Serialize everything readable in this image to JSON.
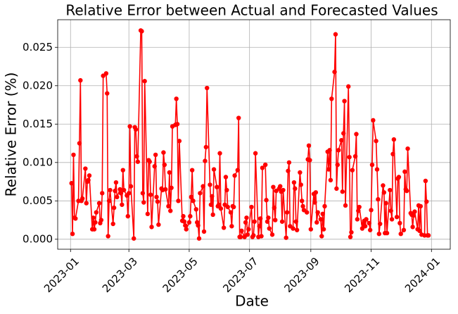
{
  "chart_data": {
    "type": "line",
    "title": "Relative Error between Actual and Forecasted Values",
    "xlabel": "Date",
    "ylabel": "Relative Error (%)",
    "color": "#ff0000",
    "grid": true,
    "xlim": [
      "2022-12-19",
      "2024-01-20"
    ],
    "xticks": [
      {
        "value": "2023-01-01",
        "label": "2023-01"
      },
      {
        "value": "2023-03-01",
        "label": "2023-03"
      },
      {
        "value": "2023-05-01",
        "label": "2023-05"
      },
      {
        "value": "2023-07-01",
        "label": "2023-07"
      },
      {
        "value": "2023-09-01",
        "label": "2023-09"
      },
      {
        "value": "2023-11-01",
        "label": "2023-11"
      },
      {
        "value": "2024-01-01",
        "label": "2024-01"
      }
    ],
    "ylim": [
      -0.0013,
      0.0286
    ],
    "yticks": [
      {
        "value": 0,
        "label": "0.000"
      },
      {
        "value": 0.005,
        "label": "0.005"
      },
      {
        "value": 0.01,
        "label": "0.010"
      },
      {
        "value": 0.015,
        "label": "0.015"
      },
      {
        "value": 0.02,
        "label": "0.020"
      },
      {
        "value": 0.025,
        "label": "0.025"
      }
    ],
    "x": [
      "2023-01-02",
      "2023-01-03",
      "2023-01-04",
      "2023-01-05",
      "2023-01-06",
      "2023-01-09",
      "2023-01-10",
      "2023-01-11",
      "2023-01-12",
      "2023-01-13",
      "2023-01-16",
      "2023-01-17",
      "2023-01-18",
      "2023-01-19",
      "2023-01-20",
      "2023-01-23",
      "2023-01-24",
      "2023-01-25",
      "2023-01-26",
      "2023-01-27",
      "2023-01-30",
      "2023-01-31",
      "2023-02-01",
      "2023-02-02",
      "2023-02-03",
      "2023-02-06",
      "2023-02-07",
      "2023-02-08",
      "2023-02-09",
      "2023-02-10",
      "2023-02-13",
      "2023-02-14",
      "2023-02-15",
      "2023-02-16",
      "2023-02-17",
      "2023-02-20",
      "2023-02-21",
      "2023-02-22",
      "2023-02-23",
      "2023-02-24",
      "2023-02-27",
      "2023-02-28",
      "2023-03-01",
      "2023-03-02",
      "2023-03-03",
      "2023-03-06",
      "2023-03-07",
      "2023-03-08",
      "2023-03-09",
      "2023-03-10",
      "2023-03-13",
      "2023-03-14",
      "2023-03-15",
      "2023-03-16",
      "2023-03-17",
      "2023-03-20",
      "2023-03-21",
      "2023-03-22",
      "2023-03-23",
      "2023-03-24",
      "2023-03-27",
      "2023-03-28",
      "2023-03-29",
      "2023-03-30",
      "2023-03-31",
      "2023-04-03",
      "2023-04-04",
      "2023-04-05",
      "2023-04-06",
      "2023-04-07",
      "2023-04-10",
      "2023-04-11",
      "2023-04-12",
      "2023-04-13",
      "2023-04-14",
      "2023-04-17",
      "2023-04-18",
      "2023-04-19",
      "2023-04-20",
      "2023-04-21",
      "2023-04-24",
      "2023-04-25",
      "2023-04-26",
      "2023-04-27",
      "2023-04-28",
      "2023-05-01",
      "2023-05-02",
      "2023-05-03",
      "2023-05-04",
      "2023-05-05",
      "2023-05-08",
      "2023-05-09",
      "2023-05-10",
      "2023-05-11",
      "2023-05-12",
      "2023-05-15",
      "2023-05-16",
      "2023-05-17",
      "2023-05-18",
      "2023-05-19",
      "2023-05-22",
      "2023-05-23",
      "2023-05-24",
      "2023-05-25",
      "2023-05-26",
      "2023-05-29",
      "2023-05-30",
      "2023-05-31",
      "2023-06-01",
      "2023-06-02",
      "2023-06-05",
      "2023-06-06",
      "2023-06-07",
      "2023-06-08",
      "2023-06-09",
      "2023-06-12",
      "2023-06-13",
      "2023-06-14",
      "2023-06-15",
      "2023-06-16",
      "2023-06-19",
      "2023-06-20",
      "2023-06-21",
      "2023-06-22",
      "2023-06-23",
      "2023-06-26",
      "2023-06-27",
      "2023-06-28",
      "2023-06-29",
      "2023-06-30",
      "2023-07-03",
      "2023-07-04",
      "2023-07-05",
      "2023-07-06",
      "2023-07-07",
      "2023-07-10",
      "2023-07-11",
      "2023-07-12",
      "2023-07-13",
      "2023-07-14",
      "2023-07-17",
      "2023-07-18",
      "2023-07-19",
      "2023-07-20",
      "2023-07-21",
      "2023-07-24",
      "2023-07-25",
      "2023-07-26",
      "2023-07-27",
      "2023-07-28",
      "2023-07-31",
      "2023-08-01",
      "2023-08-02",
      "2023-08-03",
      "2023-08-04",
      "2023-08-07",
      "2023-08-08",
      "2023-08-09",
      "2023-08-10",
      "2023-08-11",
      "2023-08-14",
      "2023-08-15",
      "2023-08-16",
      "2023-08-17",
      "2023-08-18",
      "2023-08-21",
      "2023-08-22",
      "2023-08-23",
      "2023-08-24",
      "2023-08-25",
      "2023-08-28",
      "2023-08-29",
      "2023-08-30",
      "2023-08-31",
      "2023-09-01",
      "2023-09-04",
      "2023-09-05",
      "2023-09-06",
      "2023-09-07",
      "2023-09-08",
      "2023-09-11",
      "2023-09-12",
      "2023-09-13",
      "2023-09-14",
      "2023-09-15",
      "2023-09-18",
      "2023-09-19",
      "2023-09-20",
      "2023-09-21",
      "2023-09-22",
      "2023-09-25",
      "2023-09-26",
      "2023-09-27",
      "2023-09-28",
      "2023-09-29",
      "2023-10-02",
      "2023-10-03",
      "2023-10-04",
      "2023-10-05",
      "2023-10-06",
      "2023-10-09",
      "2023-10-10",
      "2023-10-11",
      "2023-10-12",
      "2023-10-13",
      "2023-10-16",
      "2023-10-17",
      "2023-10-18",
      "2023-10-19",
      "2023-10-20",
      "2023-10-23",
      "2023-10-24",
      "2023-10-25",
      "2023-10-26",
      "2023-10-27",
      "2023-10-30",
      "2023-10-31",
      "2023-11-01",
      "2023-11-02",
      "2023-11-03",
      "2023-11-06",
      "2023-11-07",
      "2023-11-08",
      "2023-11-09",
      "2023-11-10",
      "2023-11-13",
      "2023-11-14",
      "2023-11-15",
      "2023-11-16",
      "2023-11-17",
      "2023-11-20",
      "2023-11-21",
      "2023-11-22",
      "2023-11-23",
      "2023-11-24",
      "2023-11-27",
      "2023-11-28",
      "2023-11-29",
      "2023-11-30",
      "2023-12-01",
      "2023-12-04",
      "2023-12-05",
      "2023-12-06",
      "2023-12-07",
      "2023-12-08",
      "2023-12-11",
      "2023-12-12",
      "2023-12-13",
      "2023-12-14",
      "2023-12-15",
      "2023-12-18",
      "2023-12-19",
      "2023-12-20",
      "2023-12-21",
      "2023-12-22",
      "2023-12-25",
      "2023-12-26",
      "2023-12-27",
      "2023-12-28",
      "2023-12-29"
    ],
    "values": [
      0.0073,
      0.0007,
      0.011,
      0.0028,
      0.0027,
      0.005,
      0.0125,
      0.0207,
      0.005,
      0.0053,
      0.0092,
      0.0047,
      0.0075,
      0.0077,
      0.0083,
      0.0013,
      0.0028,
      0.0013,
      0.0022,
      0.0035,
      0.0047,
      0.0021,
      0.0025,
      0.006,
      0.0213,
      0.0216,
      0.019,
      0.0004,
      0.005,
      0.0064,
      0.002,
      0.0041,
      0.0063,
      0.0074,
      0.0055,
      0.0065,
      0.006,
      0.0045,
      0.009,
      0.0064,
      0.0057,
      0.003,
      0.006,
      0.0147,
      0.0069,
      0.0001,
      0.0146,
      0.0143,
      0.0108,
      0.0101,
      0.0272,
      0.0271,
      0.006,
      0.0048,
      0.0206,
      0.0033,
      0.0103,
      0.0101,
      0.0058,
      0.0016,
      0.0095,
      0.011,
      0.0055,
      0.0049,
      0.0019,
      0.0066,
      0.0064,
      0.0113,
      0.0097,
      0.0065,
      0.0043,
      0.0087,
      0.0037,
      0.0067,
      0.0147,
      0.0149,
      0.0183,
      0.015,
      0.005,
      0.0128,
      0.0024,
      0.003,
      0.0023,
      0.0018,
      0.0013,
      0.0022,
      0.003,
      0.0055,
      0.009,
      0.005,
      0.0039,
      0.0022,
      0.0018,
      0.0001,
      0.006,
      0.0069,
      0.001,
      0.0102,
      0.012,
      0.0197,
      0.0071,
      0.0045,
      0.0056,
      0.0032,
      0.0091,
      0.0068,
      0.0043,
      0.0045,
      0.0112,
      0.004,
      0.0015,
      0.0045,
      0.0081,
      0.0064,
      0.0042,
      0.0035,
      0.0017,
      0.0043,
      0.0042,
      0.0083,
      0.009,
      0.0158,
      0.0003,
      0.0003,
      0.0011,
      0.0003,
      0.0022,
      0.0028,
      0.0006,
      0.0013,
      0.0042,
      0.0003,
      0.0005,
      0.0023,
      0.0112,
      0.0003,
      0.0017,
      0.0027,
      0.0004,
      0.0093,
      0.0097,
      0.0051,
      0.0023,
      0.0028,
      0.0014,
      0.0006,
      0.0068,
      0.0041,
      0.0025,
      0.0063,
      0.0066,
      0.0069,
      0.0062,
      0.0023,
      0.0064,
      0.0002,
      0.0035,
      0.0089,
      0.01,
      0.0017,
      0.0014,
      0.0074,
      0.0066,
      0.0023,
      0.0012,
      0.0087,
      0.0071,
      0.005,
      0.0043,
      0.0038,
      0.0035,
      0.0104,
      0.0122,
      0.0103,
      0.0013,
      0.0059,
      0.0048,
      0.0061,
      0.0022,
      0.0035,
      0.0026,
      0.0004,
      0.0033,
      0.0013,
      0.0043,
      0.0114,
      0.0091,
      0.0116,
      0.0077,
      0.0183,
      0.0218,
      0.0267,
      0.0066,
      0.0097,
      0.0116,
      0.0129,
      0.0062,
      0.0138,
      0.018,
      0.0044,
      0.0199,
      0.0107,
      0.0003,
      0.0009,
      0.009,
      0.0108,
      0.0137,
      0.0026,
      0.0037,
      0.0042,
      0.0014,
      0.002,
      0.0024,
      0.0017,
      0.0026,
      0.0021,
      0.0012,
      0.0038,
      0.0097,
      0.0155,
      0.0128,
      0.0091,
      0.0052,
      0.0007,
      0.002,
      0.007,
      0.0061,
      0.0008,
      0.0047,
      0.0008,
      0.0064,
      0.0037,
      0.0026,
      0.0111,
      0.013,
      0.0029,
      0.0079,
      0.0081,
      0.0021,
      0.0007,
      0.0012,
      0.0088,
      0.0065,
      0.0063,
      0.0118,
      0.0034,
      0.0032,
      0.0016,
      0.0031,
      0.0036,
      0.0013,
      0.0044,
      0.0011,
      0.0043,
      0.0006,
      0.0005,
      0.0076,
      0.0049,
      0.0005,
      0.0005
    ]
  }
}
